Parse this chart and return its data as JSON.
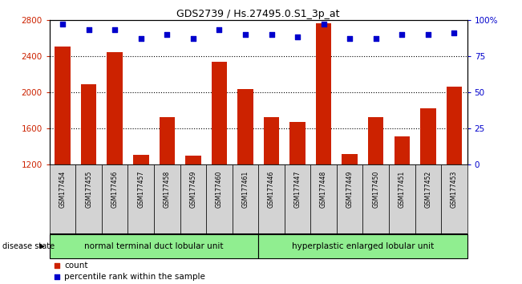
{
  "title": "GDS2739 / Hs.27495.0.S1_3p_at",
  "samples": [
    "GSM177454",
    "GSM177455",
    "GSM177456",
    "GSM177457",
    "GSM177458",
    "GSM177459",
    "GSM177460",
    "GSM177461",
    "GSM177446",
    "GSM177447",
    "GSM177448",
    "GSM177449",
    "GSM177450",
    "GSM177451",
    "GSM177452",
    "GSM177453"
  ],
  "counts": [
    2510,
    2090,
    2440,
    1310,
    1730,
    1300,
    2340,
    2040,
    1730,
    1670,
    2760,
    1320,
    1730,
    1510,
    1820,
    2060
  ],
  "percentiles": [
    97,
    93,
    93,
    87,
    90,
    87,
    93,
    90,
    90,
    88,
    97,
    87,
    87,
    90,
    90,
    91
  ],
  "group1_label": "normal terminal duct lobular unit",
  "group1_count": 8,
  "group2_label": "hyperplastic enlarged lobular unit",
  "group2_count": 8,
  "disease_state_label": "disease state",
  "legend_count_label": "count",
  "legend_pct_label": "percentile rank within the sample",
  "ylim_left": [
    1200,
    2800
  ],
  "yticks_left": [
    1200,
    1600,
    2000,
    2400,
    2800
  ],
  "yticks_right": [
    0,
    25,
    50,
    75,
    100
  ],
  "bar_color": "#cc2200",
  "dot_color": "#0000cc",
  "grid_color": "#000000",
  "bg_color": "#ffffff",
  "tick_label_color_left": "#cc2200",
  "tick_label_color_right": "#0000cc",
  "group1_bg": "#90ee90",
  "group2_bg": "#90ee90",
  "sample_bg": "#d3d3d3"
}
